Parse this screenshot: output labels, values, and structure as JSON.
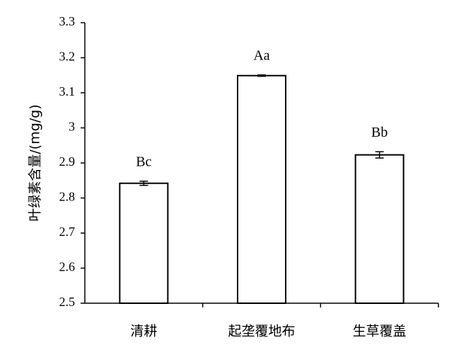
{
  "chart_data": {
    "type": "bar",
    "y_label": "叶绿素含量/(mg/g)",
    "categories": [
      "清耕",
      "起垄覆地布",
      "生草覆盖"
    ],
    "values": [
      2.842,
      3.149,
      2.923
    ],
    "errors": [
      0.006,
      0.002,
      0.009
    ],
    "annotations": [
      "Bc",
      "Aa",
      "Bb"
    ],
    "color": "#ffffff",
    "ylim": [
      2.5,
      3.3
    ],
    "yticks": [
      2.5,
      2.6,
      2.7,
      2.8,
      2.9,
      3,
      3.1,
      3.2,
      3.3
    ],
    "grid": false
  }
}
